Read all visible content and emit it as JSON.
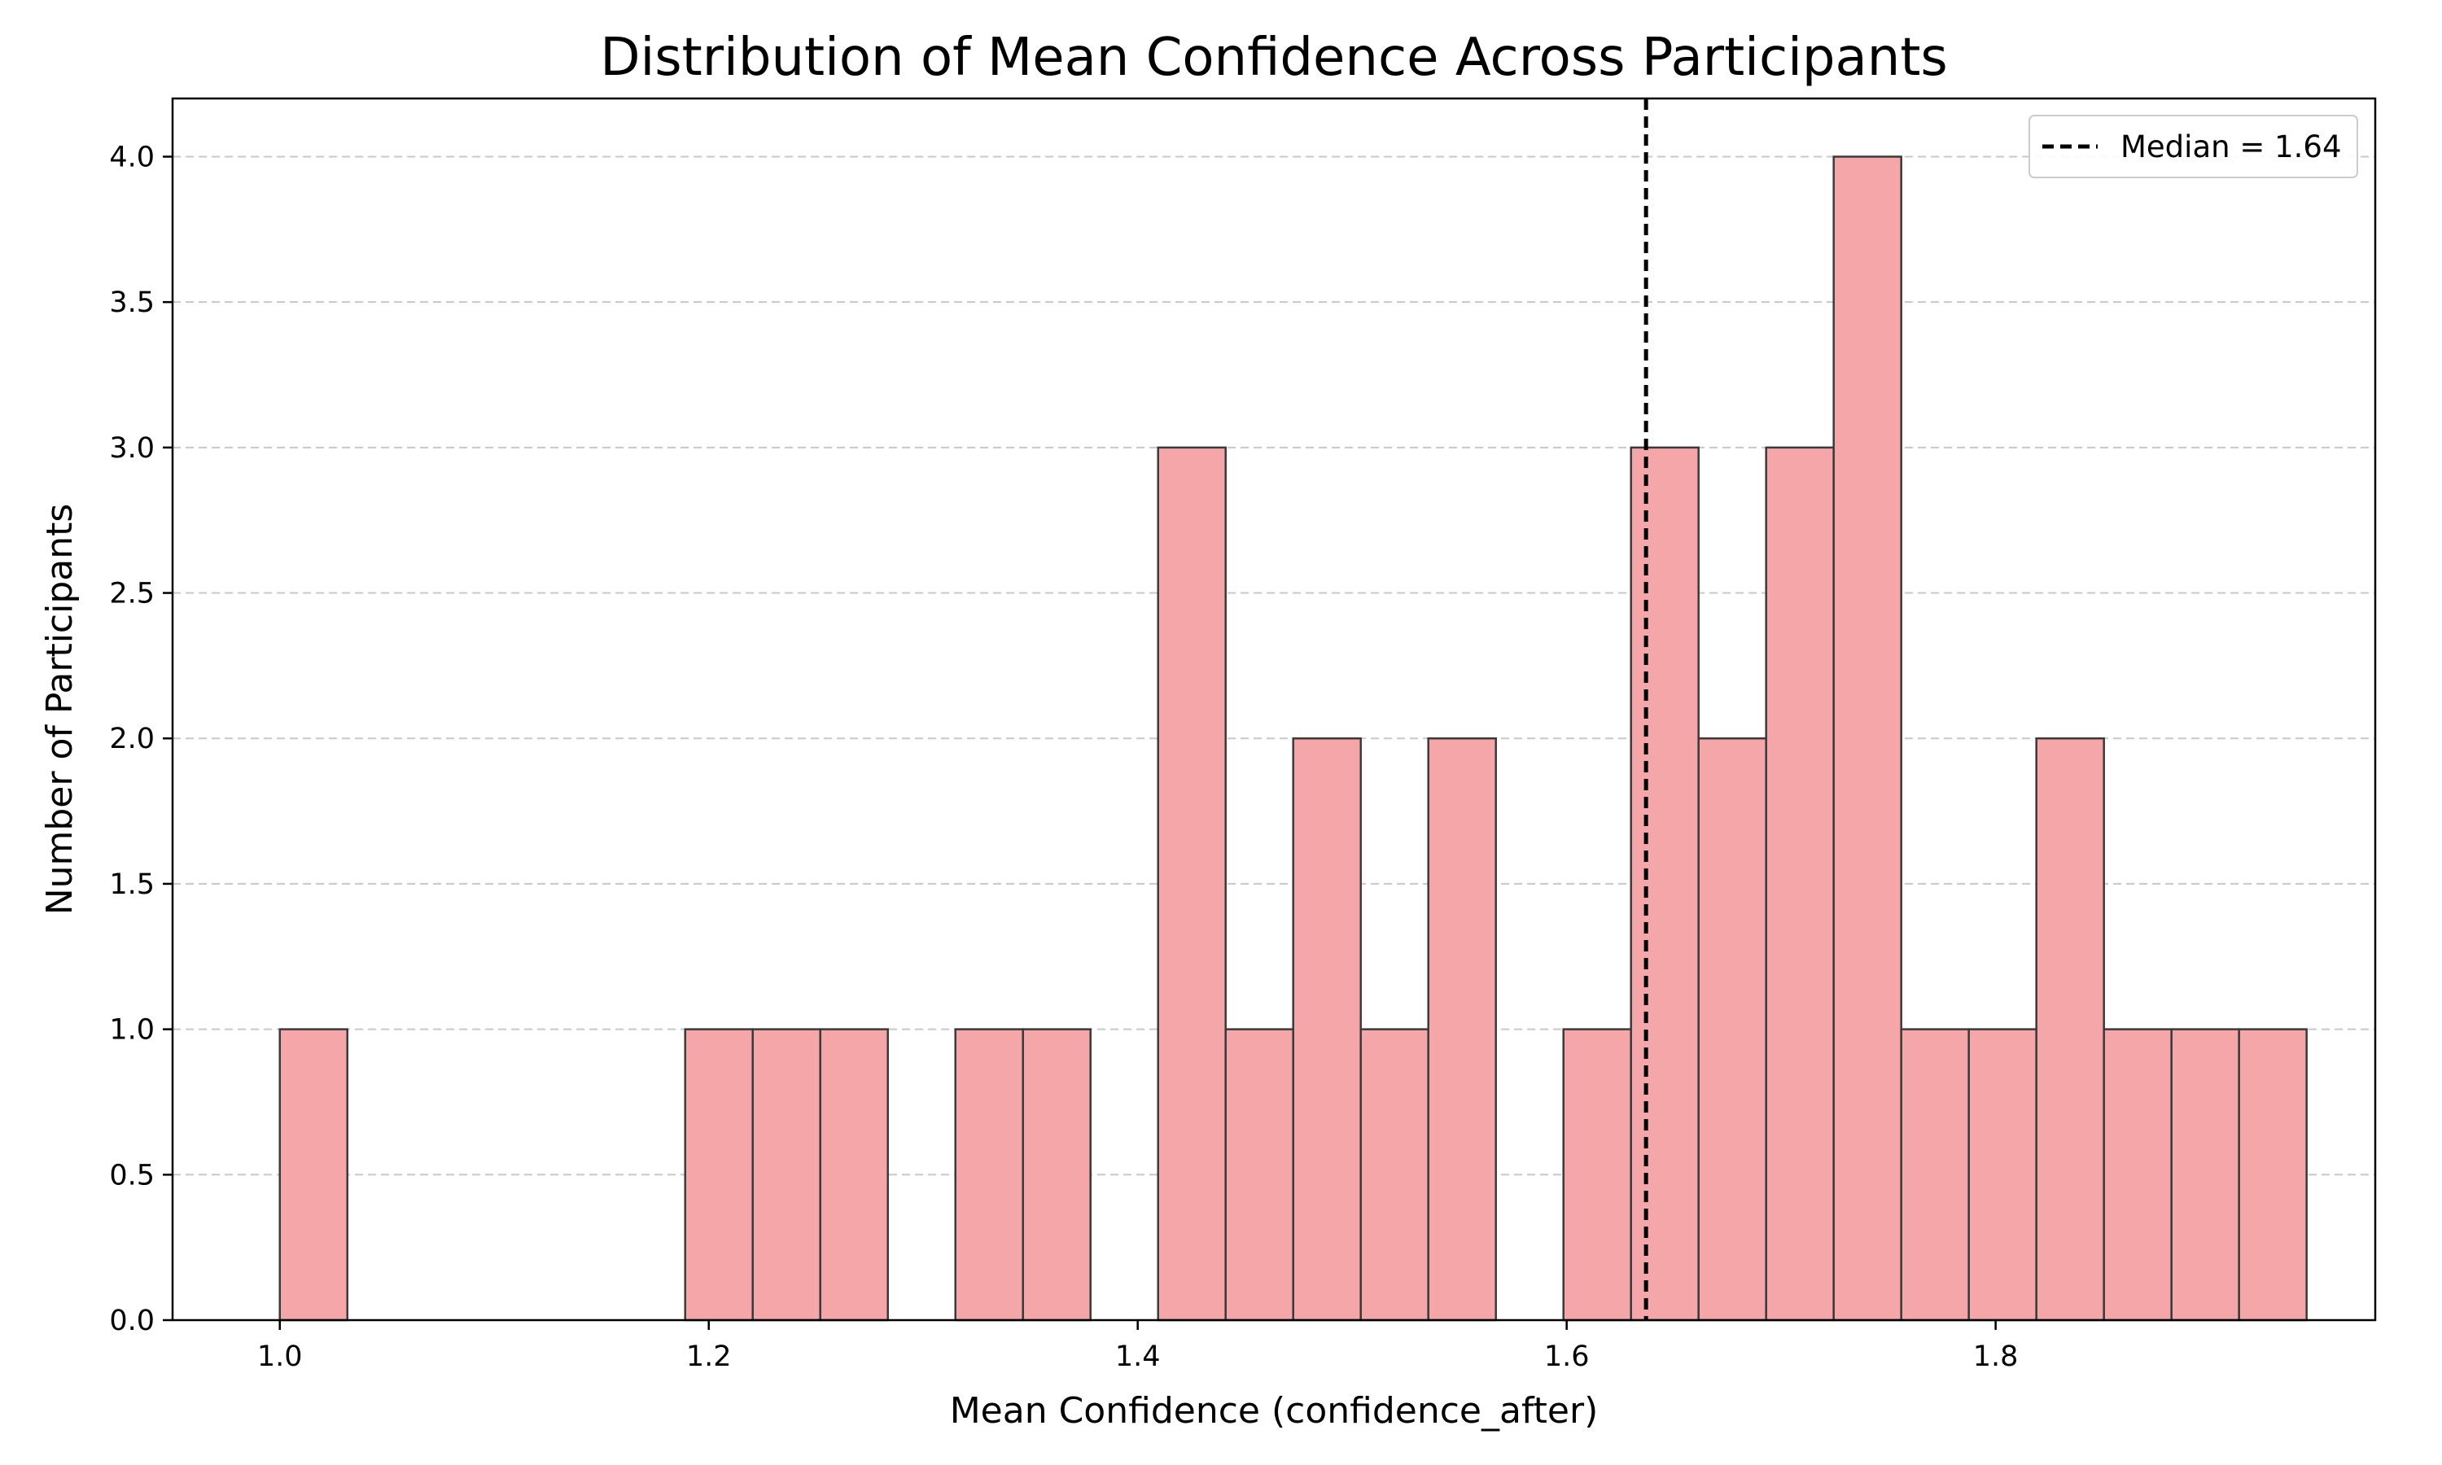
{
  "chart_data": {
    "type": "bar",
    "title": "Distribution of Mean Confidence Across Participants",
    "xlabel": "Mean Confidence (confidence_after)",
    "ylabel": "Number of Participants",
    "xlim": [
      0.95,
      1.977
    ],
    "ylim": [
      0,
      4.2
    ],
    "bin_width": 0.0315,
    "bins": [
      {
        "start": 1.0,
        "count": 1
      },
      {
        "start": 1.189,
        "count": 1
      },
      {
        "start": 1.2205,
        "count": 1
      },
      {
        "start": 1.252,
        "count": 1
      },
      {
        "start": 1.315,
        "count": 1
      },
      {
        "start": 1.3465,
        "count": 1
      },
      {
        "start": 1.4095,
        "count": 3
      },
      {
        "start": 1.441,
        "count": 1
      },
      {
        "start": 1.4725,
        "count": 2
      },
      {
        "start": 1.504,
        "count": 1
      },
      {
        "start": 1.5355,
        "count": 2
      },
      {
        "start": 1.5985,
        "count": 1
      },
      {
        "start": 1.63,
        "count": 3
      },
      {
        "start": 1.6615,
        "count": 2
      },
      {
        "start": 1.693,
        "count": 3
      },
      {
        "start": 1.7245,
        "count": 4
      },
      {
        "start": 1.756,
        "count": 1
      },
      {
        "start": 1.7875,
        "count": 1
      },
      {
        "start": 1.819,
        "count": 2
      },
      {
        "start": 1.8505,
        "count": 1
      },
      {
        "start": 1.882,
        "count": 1
      },
      {
        "start": 1.9135,
        "count": 1
      }
    ],
    "x_ticks": [
      {
        "value": 1.0,
        "label": "1.0"
      },
      {
        "value": 1.2,
        "label": "1.2"
      },
      {
        "value": 1.4,
        "label": "1.4"
      },
      {
        "value": 1.6,
        "label": "1.6"
      },
      {
        "value": 1.8,
        "label": "1.8"
      }
    ],
    "y_ticks": [
      {
        "value": 0.0,
        "label": "0.0"
      },
      {
        "value": 0.5,
        "label": "0.5"
      },
      {
        "value": 1.0,
        "label": "1.0"
      },
      {
        "value": 1.5,
        "label": "1.5"
      },
      {
        "value": 2.0,
        "label": "2.0"
      },
      {
        "value": 2.5,
        "label": "2.5"
      },
      {
        "value": 3.0,
        "label": "3.0"
      },
      {
        "value": 3.5,
        "label": "3.5"
      },
      {
        "value": 4.0,
        "label": "4.0"
      }
    ],
    "median": {
      "value": 1.637,
      "label": "Median = 1.64"
    },
    "grid": "y",
    "legend_position": "top-right",
    "colors": {
      "bar_fill": "#f4a6a8",
      "bar_edge": "#3a3a3a",
      "median_line": "#000000",
      "grid": "#c8c8c8"
    }
  }
}
